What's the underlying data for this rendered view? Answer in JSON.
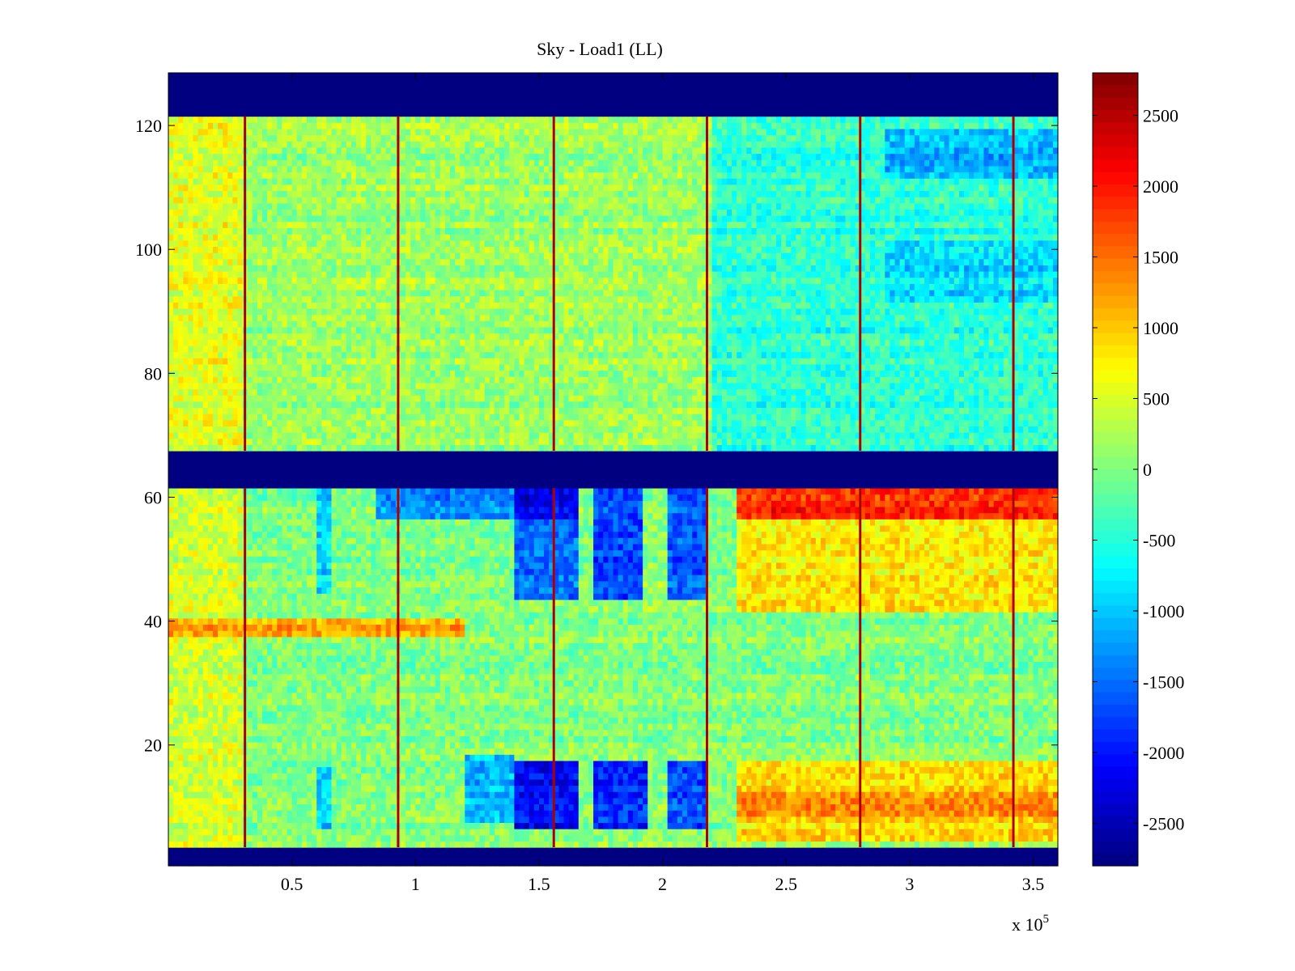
{
  "chart_data": {
    "type": "heatmap",
    "title": "Sky - Load1 (LL)",
    "xlabel": "",
    "ylabel": "",
    "x_multiplier": "x 10",
    "x_multiplier_exponent": "5",
    "xlim": [
      0,
      3.6
    ],
    "ylim": [
      0.5,
      128.5
    ],
    "x_ticks": [
      0.5,
      1,
      1.5,
      2,
      2.5,
      3,
      3.5
    ],
    "x_tick_labels": [
      "0.5",
      "1",
      "1.5",
      "2",
      "2.5",
      "3",
      "3.5"
    ],
    "y_ticks": [
      20,
      40,
      60,
      80,
      100,
      120
    ],
    "y_tick_labels": [
      "20",
      "40",
      "60",
      "80",
      "100",
      "120"
    ],
    "colorbar": {
      "colormap": "jet",
      "range": [
        -2800,
        2800
      ],
      "ticks": [
        2500,
        2000,
        1500,
        1000,
        500,
        0,
        -500,
        -1000,
        -1500,
        -2000,
        -2500
      ],
      "tick_labels": [
        "2500",
        "2000",
        "1500",
        "1000",
        "500",
        "0",
        "-500",
        "-1000",
        "-1500",
        "-2000",
        "-2500"
      ]
    },
    "masked_bands_y": [
      [
        0.5,
        3.5
      ],
      [
        61.5,
        67.5
      ],
      [
        121.5,
        128.5
      ]
    ],
    "masked_value": -2800,
    "spike_columns_x": [
      0.31,
      0.93,
      1.56,
      2.18,
      2.8,
      3.42
    ],
    "spike_value": 2400,
    "base_value_upper_block": 150,
    "base_value_lower_block": 0,
    "regions": [
      {
        "x": [
          0.0,
          0.3
        ],
        "y": [
          4,
          61
        ],
        "value": 450
      },
      {
        "x": [
          0.0,
          0.3
        ],
        "y": [
          68,
          121
        ],
        "value": 550
      },
      {
        "x": [
          2.2,
          3.6
        ],
        "y": [
          68,
          121
        ],
        "value": -450
      },
      {
        "x": [
          2.9,
          3.6
        ],
        "y": [
          112,
          119
        ],
        "value": -1100
      },
      {
        "x": [
          2.9,
          3.6
        ],
        "y": [
          92,
          101
        ],
        "value": -900
      },
      {
        "x": [
          0.0,
          1.2
        ],
        "y": [
          38,
          40
        ],
        "value": 1200
      },
      {
        "x": [
          0.85,
          1.67
        ],
        "y": [
          57,
          61
        ],
        "value": -1300
      },
      {
        "x": [
          1.4,
          1.67
        ],
        "y": [
          57,
          61
        ],
        "value": -2200
      },
      {
        "x": [
          1.4,
          1.67
        ],
        "y": [
          44,
          56
        ],
        "value": -1500
      },
      {
        "x": [
          1.73,
          1.93
        ],
        "y": [
          44,
          61
        ],
        "value": -1700
      },
      {
        "x": [
          2.02,
          2.17
        ],
        "y": [
          44,
          61
        ],
        "value": -1600
      },
      {
        "x": [
          1.93,
          2.02
        ],
        "y": [
          40,
          61
        ],
        "value": 100
      },
      {
        "x": [
          1.2,
          1.4
        ],
        "y": [
          8,
          18
        ],
        "value": -1100
      },
      {
        "x": [
          1.4,
          1.67
        ],
        "y": [
          7,
          17
        ],
        "value": -2100
      },
      {
        "x": [
          1.73,
          1.93
        ],
        "y": [
          7,
          17
        ],
        "value": -1900
      },
      {
        "x": [
          2.02,
          2.17
        ],
        "y": [
          7,
          17
        ],
        "value": -1700
      },
      {
        "x": [
          2.3,
          3.6
        ],
        "y": [
          57,
          61
        ],
        "value": 1900
      },
      {
        "x": [
          2.3,
          3.6
        ],
        "y": [
          42,
          56
        ],
        "value": 800
      },
      {
        "x": [
          2.3,
          3.6
        ],
        "y": [
          5,
          17
        ],
        "value": 900
      },
      {
        "x": [
          2.3,
          3.6
        ],
        "y": [
          9,
          12
        ],
        "value": 1300
      },
      {
        "x": [
          0.6,
          0.65
        ],
        "y": [
          45,
          61
        ],
        "value": -900
      },
      {
        "x": [
          0.6,
          0.65
        ],
        "y": [
          7,
          16
        ],
        "value": -900
      }
    ]
  }
}
